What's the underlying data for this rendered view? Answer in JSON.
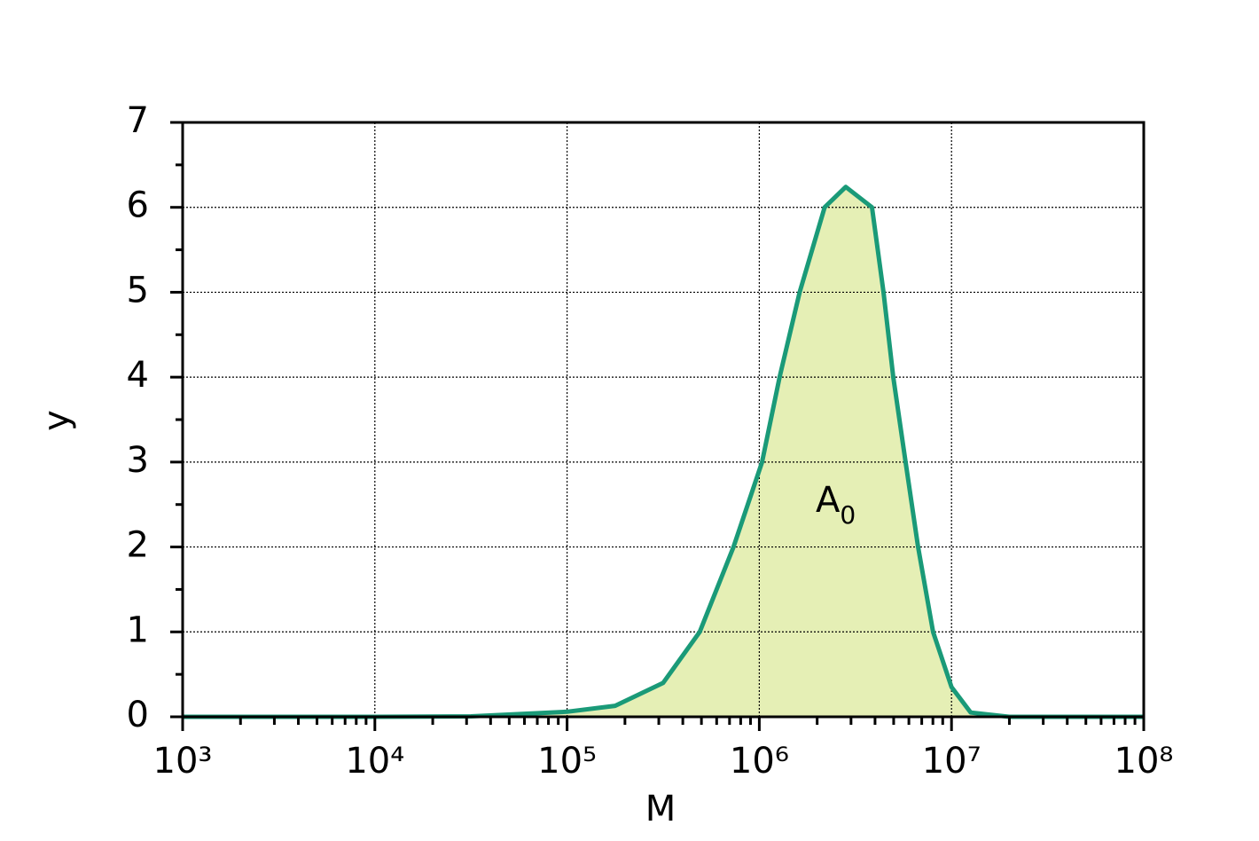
{
  "chart_data": {
    "type": "area",
    "xlabel": "M",
    "ylabel": "y",
    "annotation": {
      "text": "A",
      "subscript": "0"
    },
    "xscale": "log",
    "xlim": [
      1000,
      100000000
    ],
    "ylim": [
      0,
      7
    ],
    "xticks": [
      {
        "value": 1000,
        "label": "10³"
      },
      {
        "value": 10000,
        "label": "10⁴"
      },
      {
        "value": 100000,
        "label": "10⁵"
      },
      {
        "value": 1000000,
        "label": "10⁶"
      },
      {
        "value": 10000000,
        "label": "10⁷"
      },
      {
        "value": 100000000,
        "label": "10⁸"
      }
    ],
    "xminorticks": [
      2000,
      3000,
      4000,
      5000,
      6000,
      7000,
      8000,
      9000,
      20000,
      30000,
      40000,
      50000,
      60000,
      70000,
      80000,
      90000,
      200000,
      300000,
      400000,
      500000,
      600000,
      700000,
      800000,
      900000,
      2000000,
      3000000,
      4000000,
      5000000,
      6000000,
      7000000,
      8000000,
      9000000,
      20000000,
      30000000,
      40000000,
      50000000,
      60000000,
      70000000,
      80000000,
      90000000
    ],
    "yticks": [
      0,
      1,
      2,
      3,
      4,
      5,
      6,
      7
    ],
    "yminorticks": [
      0.5,
      1.5,
      2.5,
      3.5,
      4.5,
      5.5,
      6.5
    ],
    "grid": true,
    "line_color": "#1a9a78",
    "fill_color": "#e5efb5",
    "x": [
      1000,
      10000,
      31620,
      100000,
      177800,
      316200,
      489800,
      734500,
      1033000,
      1276000,
      1622000,
      2188000,
      2818000,
      3855000,
      4426000,
      4977000,
      5768000,
      6699000,
      8017000,
      10000000,
      12590000,
      19950000,
      100000000
    ],
    "values": [
      0,
      0,
      0.005,
      0.06,
      0.13,
      0.4,
      1,
      2,
      3,
      4,
      5,
      6,
      6.24,
      6,
      5,
      4,
      3,
      2,
      1,
      0.35,
      0.05,
      0,
      0
    ]
  }
}
